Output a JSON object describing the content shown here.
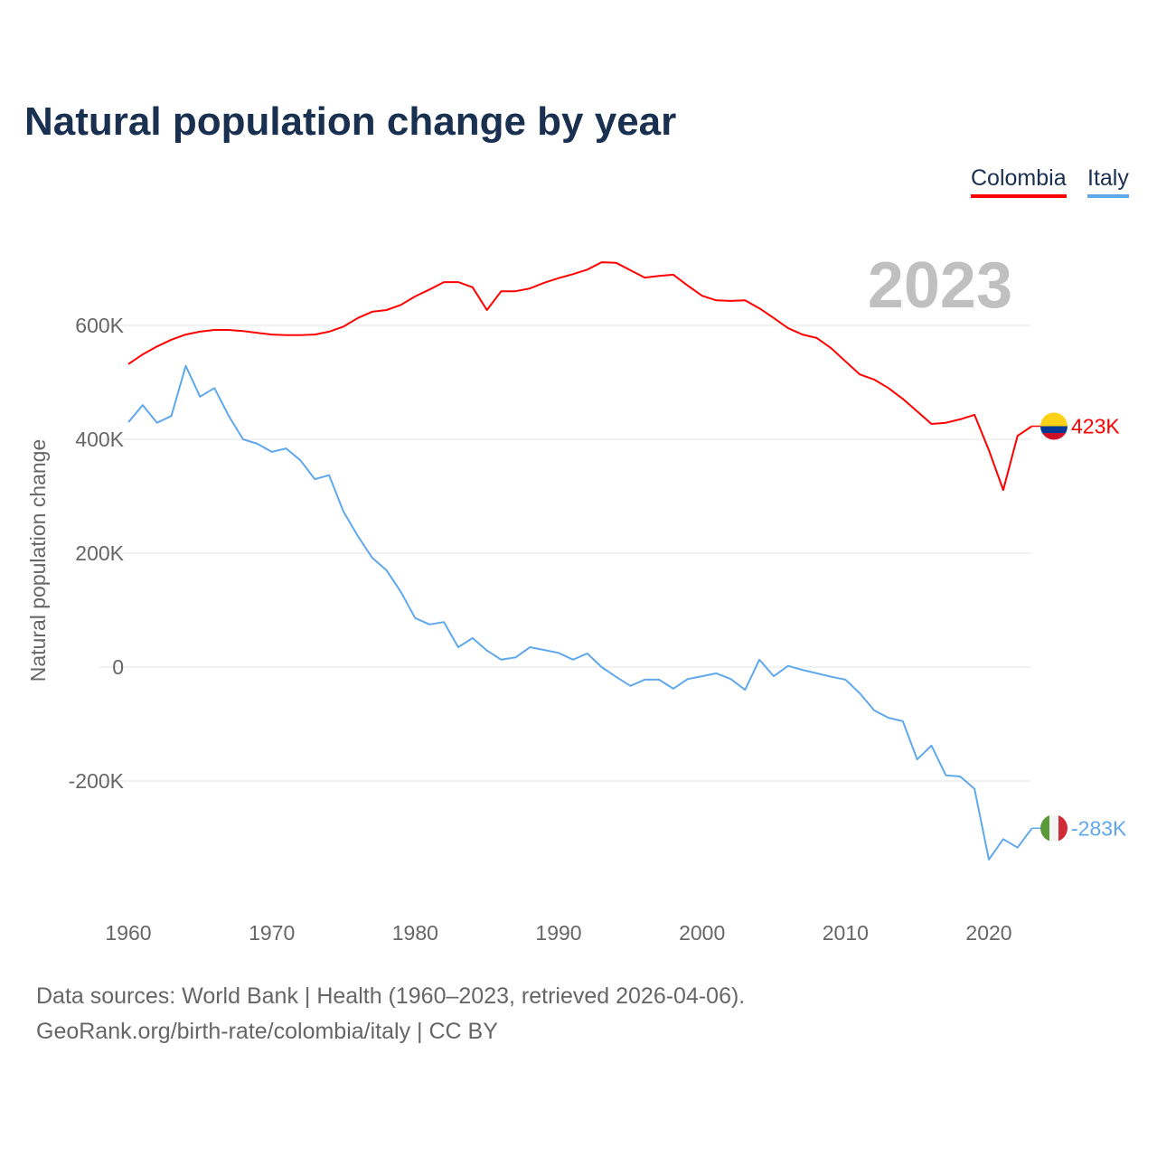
{
  "title": "Natural population change by year",
  "footer": {
    "sources": "Data sources: World Bank | Health (1960–2023, retrieved 2026-04-06).",
    "link": "GeoRank.org/birth-rate/colombia/italy | CC BY"
  },
  "chart_data": {
    "type": "line",
    "title": "Natural population change by year",
    "xlabel": "",
    "ylabel": "Natural population change",
    "year_label": "2023",
    "xlim": [
      1960,
      2023
    ],
    "ylim": [
      -400,
      800
    ],
    "grid": true,
    "legend_placement": "top-right",
    "x_ticks": [
      1960,
      1970,
      1980,
      1990,
      2000,
      2010,
      2020
    ],
    "x_tick_labels": [
      "1960",
      "1970",
      "1980",
      "1990",
      "2000",
      "2010",
      "2020"
    ],
    "y_ticks": [
      -200,
      0,
      200,
      400,
      600
    ],
    "y_tick_labels": [
      "-200K",
      "0",
      "200K",
      "400K",
      "600K"
    ],
    "x": [
      1960,
      1961,
      1962,
      1963,
      1964,
      1965,
      1966,
      1967,
      1968,
      1969,
      1970,
      1971,
      1972,
      1973,
      1974,
      1975,
      1976,
      1977,
      1978,
      1979,
      1980,
      1981,
      1982,
      1983,
      1984,
      1985,
      1986,
      1987,
      1988,
      1989,
      1990,
      1991,
      1992,
      1993,
      1994,
      1995,
      1996,
      1997,
      1998,
      1999,
      2000,
      2001,
      2002,
      2003,
      2004,
      2005,
      2006,
      2007,
      2008,
      2009,
      2010,
      2011,
      2012,
      2013,
      2014,
      2015,
      2016,
      2017,
      2018,
      2019,
      2020,
      2021,
      2022,
      2023
    ],
    "series": [
      {
        "name": "Colombia",
        "color": "#ff0000",
        "end_label": "423K",
        "flag": "colombia-flag",
        "values": [
          532,
          549,
          563,
          575,
          584,
          589,
          592,
          592,
          590,
          587,
          584,
          583,
          583,
          584,
          589,
          598,
          613,
          624,
          627,
          636,
          651,
          663,
          676,
          676,
          667,
          627,
          660,
          660,
          665,
          675,
          683,
          690,
          698,
          711,
          710,
          697,
          684,
          687,
          689,
          670,
          652,
          644,
          643,
          644,
          630,
          613,
          595,
          584,
          578,
          560,
          537,
          514,
          505,
          490,
          471,
          449,
          427,
          429,
          435,
          443,
          381,
          311,
          406,
          423
        ]
      },
      {
        "name": "Italy",
        "color": "#60a8ee",
        "end_label": "-283K",
        "flag": "italy-flag",
        "values": [
          430,
          460,
          429,
          441,
          529,
          475,
          490,
          441,
          400,
          392,
          378,
          384,
          363,
          330,
          337,
          273,
          230,
          192,
          170,
          132,
          86,
          75,
          79,
          35,
          51,
          29,
          13,
          17,
          35,
          30,
          25,
          13,
          24,
          0,
          -17,
          -33,
          -22,
          -22,
          -38,
          -21,
          -16,
          -11,
          -21,
          -40,
          13,
          -16,
          2,
          -5,
          -11,
          -17,
          -22,
          -46,
          -76,
          -89,
          -95,
          -162,
          -138,
          -190,
          -192,
          -214,
          -338,
          -302,
          -317,
          -283
        ]
      }
    ]
  }
}
